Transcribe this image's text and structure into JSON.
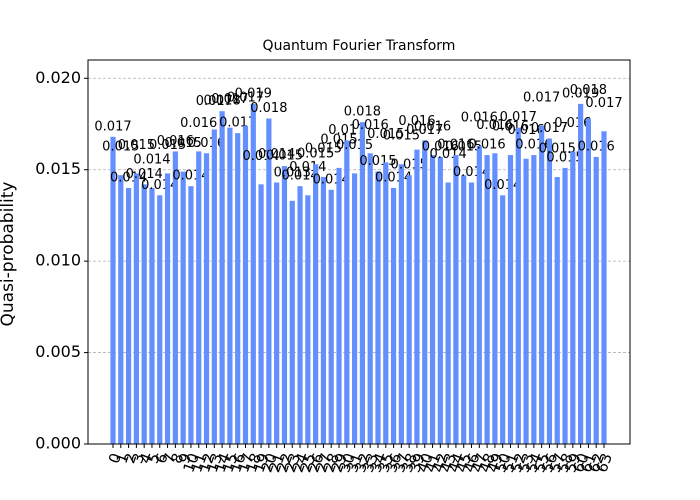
{
  "chart_data": {
    "type": "bar",
    "title": "Quantum Fourier Transform",
    "y_label": "Quasi-probability",
    "categories": [
      "0",
      "1",
      "2",
      "3",
      "4",
      "5",
      "6",
      "7",
      "8",
      "9",
      "10",
      "11",
      "12",
      "13",
      "14",
      "15",
      "16",
      "17",
      "18",
      "19",
      "20",
      "21",
      "22",
      "23",
      "24",
      "25",
      "26",
      "27",
      "28",
      "29",
      "30",
      "31",
      "32",
      "33",
      "34",
      "35",
      "36",
      "37",
      "38",
      "39",
      "40",
      "41",
      "42",
      "43",
      "44",
      "45",
      "46",
      "47",
      "48",
      "49",
      "50",
      "51",
      "52",
      "53",
      "54",
      "55",
      "56",
      "57",
      "58",
      "59",
      "60",
      "61",
      "62",
      "63"
    ],
    "values": [
      0.0168,
      0.0147,
      0.014,
      0.0148,
      0.0142,
      0.014,
      0.0136,
      0.0148,
      0.016,
      0.0149,
      0.0141,
      0.016,
      0.0159,
      0.0172,
      0.0182,
      0.0173,
      0.017,
      0.0174,
      0.0186,
      0.0142,
      0.0178,
      0.0143,
      0.0152,
      0.0133,
      0.0141,
      0.0136,
      0.0153,
      0.0146,
      0.0139,
      0.0151,
      0.0166,
      0.0148,
      0.0176,
      0.0159,
      0.0149,
      0.0154,
      0.014,
      0.0153,
      0.0147,
      0.0161,
      0.0166,
      0.0158,
      0.0157,
      0.0143,
      0.0158,
      0.0147,
      0.0143,
      0.0163,
      0.0158,
      0.0159,
      0.0136,
      0.0158,
      0.0173,
      0.0156,
      0.0158,
      0.0174,
      0.0167,
      0.0146,
      0.0151,
      0.016,
      0.0186,
      0.0178,
      0.0157,
      0.0171
    ],
    "value_labels": [
      "0.017",
      "0.015",
      "0.014",
      "0.015",
      "0.014",
      "0.014",
      "0.014",
      "0.015",
      "0.016",
      "0.015",
      "0.014",
      "0.016",
      "0.016",
      "0.017",
      "0.018",
      "0.017",
      "0.017",
      "0.017",
      "0.019",
      "0.014",
      "0.018",
      "0.014",
      "0.015",
      "0.013",
      "0.014",
      "0.014",
      "0.015",
      "0.015",
      "0.014",
      "0.015",
      "0.017",
      "0.015",
      "0.018",
      "0.016",
      "0.015",
      "0.015",
      "0.014",
      "0.015",
      "0.015",
      "0.016",
      "0.017",
      "0.016",
      "0.016",
      "0.014",
      "0.016",
      "0.015",
      "0.014",
      "0.016",
      "0.016",
      "0.016",
      "0.014",
      "0.016",
      "0.017",
      "0.016",
      "0.016",
      "0.017",
      "0.017",
      "0.015",
      "0.015",
      "0.016",
      "0.019",
      "0.018",
      "0.016",
      "0.017"
    ],
    "color": "#648fff",
    "ylim": [
      0,
      0.021
    ],
    "yticks": [
      {
        "value": 0,
        "label": "0.000"
      },
      {
        "value": 0.005,
        "label": "0.005"
      },
      {
        "value": 0.01,
        "label": "0.010"
      },
      {
        "value": 0.015,
        "label": "0.015"
      },
      {
        "value": 0.02,
        "label": "0.020"
      }
    ],
    "grid": true
  }
}
